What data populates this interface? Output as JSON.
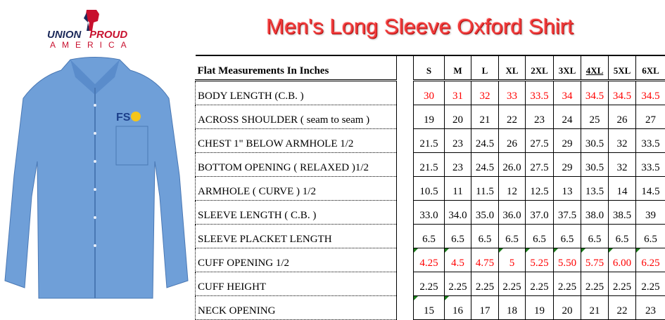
{
  "logo": {
    "line1": "UNION PROUD",
    "line2": "AMERICA"
  },
  "title": "Men's Long Sleeve Oxford Shirt",
  "shirt": {
    "color": "#6f9fd8",
    "embroidery": "FS"
  },
  "table": {
    "header": "Flat Measurements In Inches",
    "sizes": [
      "S",
      "M",
      "L",
      "XL",
      "2XL",
      "3XL",
      "4XL",
      "5XL",
      "6XL"
    ],
    "underlined_size": "4XL",
    "rows": [
      {
        "label": "BODY LENGTH (C.B. )",
        "values": [
          "30",
          "31",
          "32",
          "33",
          "33.5",
          "34",
          "34.5",
          "34.5",
          "34.5"
        ],
        "color": "red"
      },
      {
        "label": "ACROSS SHOULDER ( seam to seam )",
        "values": [
          "19",
          "20",
          "21",
          "22",
          "23",
          "24",
          "25",
          "26",
          "27"
        ]
      },
      {
        "label": "CHEST 1\" BELOW ARMHOLE 1/2",
        "values": [
          "21.5",
          "23",
          "24.5",
          "26",
          "27.5",
          "29",
          "30.5",
          "32",
          "33.5"
        ]
      },
      {
        "label": "BOTTOM OPENING ( RELAXED )1/2",
        "values": [
          "21.5",
          "23",
          "24.5",
          "26.0",
          "27.5",
          "29",
          "30.5",
          "32",
          "33.5"
        ]
      },
      {
        "label": "ARMHOLE ( CURVE ) 1/2",
        "values": [
          "10.5",
          "11",
          "11.5",
          "12",
          "12.5",
          "13",
          "13.5",
          "14",
          "14.5"
        ]
      },
      {
        "label": "SLEEVE LENGTH ( C.B. )",
        "values": [
          "33.0",
          "34.0",
          "35.0",
          "36.0",
          "37.0",
          "37.5",
          "38.0",
          "38.5",
          "39"
        ]
      },
      {
        "label": "SLEEVE PLACKET LENGTH",
        "values": [
          "6.5",
          "6.5",
          "6.5",
          "6.5",
          "6.5",
          "6.5",
          "6.5",
          "6.5",
          "6.5"
        ]
      },
      {
        "label": "CUFF OPENING    1/2",
        "values": [
          "4.25",
          "4.5",
          "4.75",
          "5",
          "5.25",
          "5.50",
          "5.75",
          "6.00",
          "6.25"
        ],
        "color": "red",
        "flags": [
          0,
          1,
          3,
          4,
          5,
          6,
          7,
          8
        ]
      },
      {
        "label": "CUFF HEIGHT",
        "values": [
          "2.25",
          "2.25",
          "2.25",
          "2.25",
          "2.25",
          "2.25",
          "2.25",
          "2.25",
          "2.25"
        ]
      },
      {
        "label": "NECK OPENING",
        "values": [
          "15",
          "16",
          "17",
          "18",
          "19",
          "20",
          "21",
          "22",
          "23"
        ],
        "flags": [
          0,
          1
        ]
      }
    ]
  }
}
